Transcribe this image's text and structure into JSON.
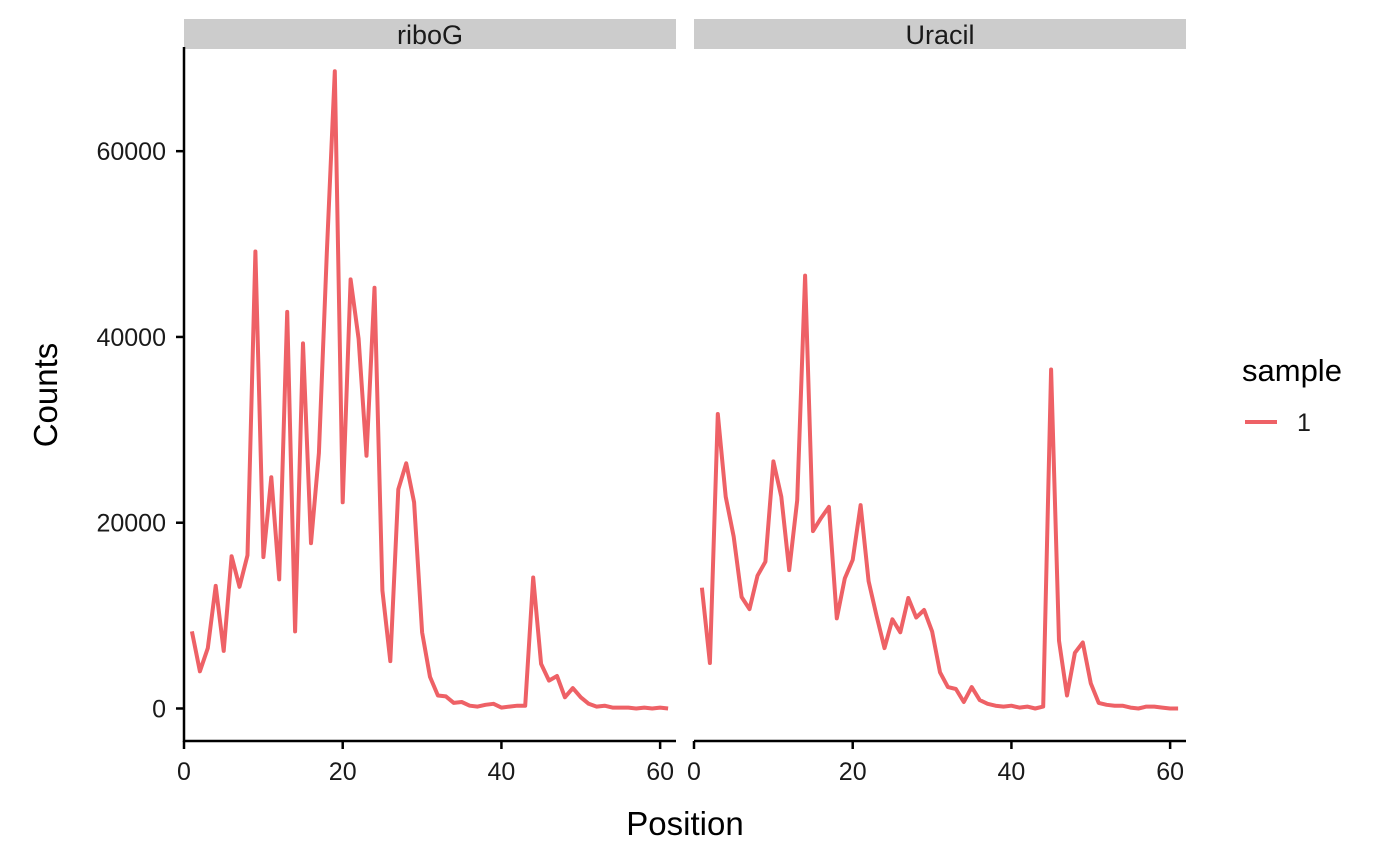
{
  "chart_data": {
    "type": "line",
    "xlabel": "Position",
    "ylabel": "Counts",
    "xlim": [
      0,
      62
    ],
    "ylim": [
      -3500,
      71000
    ],
    "x_ticks": [
      0,
      20,
      40,
      60
    ],
    "y_ticks": [
      0,
      20000,
      40000,
      60000
    ],
    "legend": {
      "title": "sample",
      "placement": "right",
      "entries": [
        "1"
      ]
    },
    "series_color": "#EE6166",
    "strip_color": "#CCCCCC",
    "panels": [
      {
        "name": "riboG",
        "series": [
          {
            "name": "1",
            "x": [
              1,
              2,
              3,
              4,
              5,
              6,
              7,
              8,
              9,
              10,
              11,
              12,
              13,
              14,
              15,
              16,
              17,
              18,
              19,
              20,
              21,
              22,
              23,
              24,
              25,
              26,
              27,
              28,
              29,
              30,
              31,
              32,
              33,
              34,
              35,
              36,
              37,
              38,
              39,
              40,
              41,
              42,
              43,
              44,
              45,
              46,
              47,
              48,
              49,
              50,
              51,
              52,
              53,
              54,
              55,
              56,
              57,
              58,
              59,
              60,
              61
            ],
            "y": [
              8300,
              4000,
              6500,
              13200,
              6200,
              16400,
              13100,
              16500,
              49200,
              16300,
              24900,
              13900,
              42700,
              8300,
              39300,
              17800,
              27500,
              49000,
              68600,
              22200,
              46200,
              39800,
              27200,
              45300,
              12700,
              5100,
              23600,
              26400,
              22200,
              8200,
              3400,
              1400,
              1300,
              600,
              700,
              300,
              200,
              400,
              500,
              100,
              200,
              300,
              300,
              14100,
              4800,
              3000,
              3500,
              1200,
              2200,
              1200,
              500,
              200,
              300,
              100,
              100,
              100,
              0,
              100,
              0,
              100,
              0
            ]
          }
        ]
      },
      {
        "name": "Uracil",
        "series": [
          {
            "name": "1",
            "x": [
              1,
              2,
              3,
              4,
              5,
              6,
              7,
              8,
              9,
              10,
              11,
              12,
              13,
              14,
              15,
              16,
              17,
              18,
              19,
              20,
              21,
              22,
              23,
              24,
              25,
              26,
              27,
              28,
              29,
              30,
              31,
              32,
              33,
              34,
              35,
              36,
              37,
              38,
              39,
              40,
              41,
              42,
              43,
              44,
              45,
              46,
              47,
              48,
              49,
              50,
              51,
              52,
              53,
              54,
              55,
              56,
              57,
              58,
              59,
              60,
              61
            ],
            "y": [
              13000,
              4900,
              31700,
              22800,
              18500,
              12000,
              10700,
              14300,
              15800,
              26600,
              22800,
              14900,
              22400,
              46600,
              19100,
              20500,
              21700,
              9700,
              14000,
              16000,
              21900,
              13700,
              10000,
              6500,
              9600,
              8200,
              11900,
              9800,
              10600,
              8300,
              3900,
              2300,
              2100,
              700,
              2300,
              900,
              500,
              300,
              200,
              300,
              100,
              200,
              0,
              200,
              36500,
              7300,
              1400,
              6000,
              7100,
              2700,
              600,
              400,
              300,
              300,
              100,
              0,
              200,
              200,
              100,
              0,
              0
            ]
          }
        ]
      }
    ]
  }
}
